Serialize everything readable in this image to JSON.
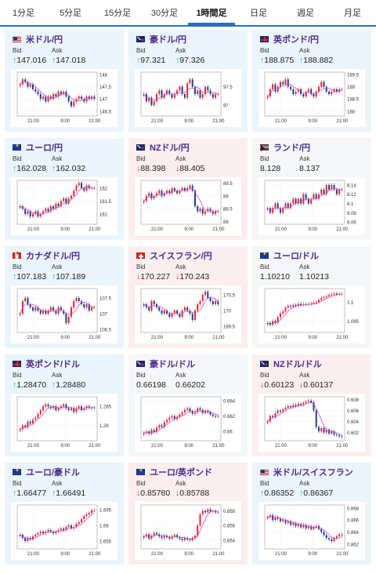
{
  "tabs": [
    {
      "label": "1分足",
      "active": false
    },
    {
      "label": "5分足",
      "active": false
    },
    {
      "label": "15分足",
      "active": false
    },
    {
      "label": "30分足",
      "active": false
    },
    {
      "label": "1時間足",
      "active": true
    },
    {
      "label": "日足",
      "active": false
    },
    {
      "label": "週足",
      "active": false
    },
    {
      "label": "月足",
      "active": false
    }
  ],
  "labels": {
    "bid": "Bid",
    "ask": "Ask"
  },
  "colors": {
    "up_bg": "#eaf4fb",
    "down_bg": "#fbeeee",
    "flat_bg": "#f4f6f8",
    "arrow_up": "#2aa9b3",
    "arrow_down": "#d2322d",
    "candle_up": "#e3232c",
    "candle_down": "#1c3a8c",
    "ma": "#d04ad0"
  },
  "pairs": [
    {
      "name": "米ドル/円",
      "flag": "us",
      "direction": "up",
      "bid": "147.016",
      "ask": "147.018",
      "chart": {
        "type": "candlestick",
        "x_ticks": [
          "21:00",
          "9:00",
          "21:00"
        ],
        "y_ticks": [
          "146.5",
          "147",
          "147.5",
          "148"
        ],
        "ylim": [
          146.3,
          148.1
        ],
        "closes": [
          147.6,
          147.8,
          147.7,
          147.5,
          147.6,
          147.4,
          147.3,
          147.2,
          147.0,
          147.1,
          146.9,
          147.1,
          147.0,
          147.2,
          147.1,
          147.3,
          147.2,
          147.3,
          147.1,
          146.9,
          146.7,
          146.9,
          147.0,
          147.1,
          147.0,
          146.9,
          147.1,
          147.0,
          147.1,
          147.0
        ]
      }
    },
    {
      "name": "豪ドル/円",
      "flag": "au",
      "direction": "up",
      "bid": "97.321",
      "ask": "97.326",
      "chart": {
        "type": "candlestick",
        "x_ticks": [
          "21:00",
          "9:00",
          "21:00"
        ],
        "y_ticks": [
          "97",
          "97.5"
        ],
        "ylim": [
          96.7,
          97.9
        ],
        "closes": [
          97.3,
          97.1,
          97.2,
          97.0,
          97.1,
          97.3,
          97.4,
          97.2,
          97.3,
          97.4,
          97.3,
          97.2,
          97.3,
          97.4,
          97.5,
          97.3,
          97.2,
          97.6,
          97.7,
          97.5,
          97.3,
          97.4,
          97.2,
          97.3,
          97.5,
          97.4,
          97.3,
          97.2,
          97.3,
          97.3
        ]
      }
    },
    {
      "name": "英ポンド/円",
      "flag": "gb",
      "direction": "up",
      "bid": "188.875",
      "ask": "188.882",
      "chart": {
        "type": "candlestick",
        "x_ticks": [
          "21:00",
          "9:00",
          "21:00"
        ],
        "y_ticks": [
          "188",
          "188.5",
          "189",
          "189.5"
        ],
        "ylim": [
          187.8,
          189.6
        ],
        "closes": [
          188.6,
          188.9,
          189.1,
          188.8,
          189.0,
          189.2,
          189.1,
          189.3,
          189.0,
          188.9,
          188.7,
          188.8,
          188.9,
          188.7,
          188.6,
          188.8,
          188.9,
          188.7,
          188.6,
          188.8,
          189.0,
          189.2,
          189.0,
          188.8,
          188.7,
          188.8,
          188.9,
          188.8,
          188.9,
          188.9
        ]
      }
    },
    {
      "name": "ユーロ/円",
      "flag": "eu",
      "direction": "up",
      "bid": "162.028",
      "ask": "162.032",
      "chart": {
        "type": "candlestick",
        "x_ticks": [
          "21:00",
          "9:00",
          "21:00"
        ],
        "y_ticks": [
          "161",
          "161.5",
          "162"
        ],
        "ylim": [
          160.6,
          162.3
        ],
        "closes": [
          161.3,
          161.2,
          161.0,
          161.1,
          160.9,
          161.0,
          161.1,
          160.9,
          161.0,
          161.1,
          161.2,
          161.1,
          161.3,
          161.2,
          161.4,
          161.3,
          161.5,
          161.6,
          161.4,
          161.6,
          161.7,
          161.9,
          162.1,
          162.2,
          162.0,
          161.9,
          162.1,
          162.0,
          162.0,
          162.0
        ]
      }
    },
    {
      "name": "NZドル/円",
      "flag": "nz",
      "direction": "down",
      "bid": "88.398",
      "ask": "88.405",
      "chart": {
        "type": "candlestick",
        "x_ticks": [
          "21:00",
          "9:00",
          "21:00"
        ],
        "y_ticks": [
          "88",
          "88.5",
          "89",
          "89.5"
        ],
        "ylim": [
          87.9,
          89.6
        ],
        "closes": [
          88.8,
          89.0,
          89.1,
          88.9,
          89.0,
          89.1,
          89.2,
          89.0,
          89.1,
          89.2,
          89.1,
          89.3,
          89.2,
          89.1,
          89.2,
          89.3,
          89.2,
          89.3,
          89.4,
          89.2,
          88.6,
          88.4,
          88.5,
          88.3,
          88.4,
          88.5,
          88.4,
          88.3,
          88.4,
          88.4
        ]
      }
    },
    {
      "name": "ランド/円",
      "flag": "za",
      "direction": "flat",
      "bid": "8.128",
      "ask": "8.137",
      "chart": {
        "type": "candlestick",
        "x_ticks": [
          "21:00",
          "9:00",
          "21:00"
        ],
        "y_ticks": [
          "8.06",
          "8.08",
          "8.1",
          "8.12",
          "8.14"
        ],
        "ylim": [
          8.055,
          8.15
        ],
        "closes": [
          8.09,
          8.08,
          8.09,
          8.1,
          8.09,
          8.08,
          8.09,
          8.1,
          8.09,
          8.1,
          8.11,
          8.1,
          8.11,
          8.1,
          8.12,
          8.11,
          8.1,
          8.11,
          8.12,
          8.11,
          8.12,
          8.13,
          8.12,
          8.14,
          8.13,
          8.14,
          8.13,
          8.12,
          8.13,
          8.13
        ]
      }
    },
    {
      "name": "カナダドル/円",
      "flag": "ca",
      "direction": "up",
      "bid": "107.183",
      "ask": "107.189",
      "chart": {
        "type": "candlestick",
        "x_ticks": [
          "21:00",
          "9:00",
          "21:00"
        ],
        "y_ticks": [
          "106.5",
          "107",
          "107.5"
        ],
        "ylim": [
          106.4,
          107.8
        ],
        "closes": [
          107.0,
          107.4,
          107.5,
          107.3,
          107.2,
          107.1,
          107.2,
          107.1,
          107.0,
          107.1,
          107.0,
          107.1,
          107.2,
          107.1,
          107.0,
          107.2,
          107.1,
          107.0,
          106.7,
          106.9,
          107.2,
          107.4,
          107.5,
          107.4,
          107.3,
          107.2,
          107.3,
          107.1,
          107.2,
          107.2
        ]
      }
    },
    {
      "name": "スイスフラン/円",
      "flag": "ch",
      "direction": "down",
      "bid": "170.227",
      "ask": "170.243",
      "chart": {
        "type": "candlestick",
        "x_ticks": [
          "21:00",
          "9:00",
          "21:00"
        ],
        "y_ticks": [
          "169.5",
          "170",
          "170.5"
        ],
        "ylim": [
          169.3,
          170.7
        ],
        "closes": [
          170.2,
          170.1,
          170.0,
          170.3,
          170.2,
          170.1,
          170.0,
          169.9,
          170.0,
          169.9,
          169.8,
          169.9,
          170.0,
          169.9,
          169.8,
          170.0,
          170.1,
          170.0,
          169.9,
          169.7,
          170.0,
          170.2,
          170.3,
          170.5,
          170.6,
          170.4,
          170.3,
          170.2,
          170.3,
          170.2
        ]
      }
    },
    {
      "name": "ユーロ/ドル",
      "flag": "eu",
      "direction": "flat",
      "bid": "1.10210",
      "ask": "1.10213",
      "chart": {
        "type": "candlestick",
        "x_ticks": [
          "21:00",
          "9:00",
          "21:00"
        ],
        "y_ticks": [
          "1.095",
          "1.1"
        ],
        "ylim": [
          1.092,
          1.1035
        ],
        "closes": [
          1.0945,
          1.094,
          1.095,
          1.0945,
          1.096,
          1.097,
          1.0975,
          1.0985,
          1.099,
          1.0988,
          1.0992,
          1.099,
          1.0995,
          1.0992,
          1.0994,
          1.0993,
          1.0995,
          1.0996,
          1.0998,
          1.1,
          1.1005,
          1.101,
          1.1012,
          1.1015,
          1.1018,
          1.102,
          1.1022,
          1.102,
          1.1021,
          1.1021
        ]
      }
    },
    {
      "name": "英ポンド/ドル",
      "flag": "gb",
      "direction": "up",
      "bid": "1.28470",
      "ask": "1.28480",
      "chart": {
        "type": "candlestick",
        "x_ticks": [
          "21:00",
          "9:00",
          "21:00"
        ],
        "y_ticks": [
          "1.28",
          "1.285"
        ],
        "ylim": [
          1.276,
          1.2875
        ],
        "closes": [
          1.279,
          1.28,
          1.2795,
          1.281,
          1.2805,
          1.2815,
          1.282,
          1.283,
          1.284,
          1.285,
          1.2855,
          1.285,
          1.2845,
          1.285,
          1.284,
          1.2845,
          1.285,
          1.2855,
          1.2845,
          1.284,
          1.2845,
          1.2835,
          1.2845,
          1.285,
          1.284,
          1.2845,
          1.285,
          1.2847,
          1.2846,
          1.2847
        ]
      }
    },
    {
      "name": "豪ドル/ドル",
      "flag": "au",
      "direction": "flat",
      "bid": "0.66198",
      "ask": "0.66202",
      "chart": {
        "type": "candlestick",
        "x_ticks": [
          "21:00",
          "9:00",
          "21:00"
        ],
        "y_ticks": [
          "0.66",
          "0.662",
          "0.664"
        ],
        "ylim": [
          0.6588,
          0.6645
        ],
        "closes": [
          0.6598,
          0.66,
          0.6597,
          0.6602,
          0.6599,
          0.6605,
          0.6608,
          0.6606,
          0.6612,
          0.6615,
          0.6618,
          0.662,
          0.6616,
          0.6619,
          0.6622,
          0.6625,
          0.6628,
          0.663,
          0.6626,
          0.6623,
          0.6625,
          0.663,
          0.6628,
          0.6624,
          0.6627,
          0.6625,
          0.6622,
          0.662,
          0.6619,
          0.662
        ]
      }
    },
    {
      "name": "NZドル/ドル",
      "flag": "nz",
      "direction": "down",
      "bid": "0.60123",
      "ask": "0.60137",
      "chart": {
        "type": "candlestick",
        "x_ticks": [
          "21:00",
          "9:00",
          "21:00"
        ],
        "y_ticks": [
          "0.602",
          "0.604",
          "0.606",
          "0.608"
        ],
        "ylim": [
          0.6005,
          0.6085
        ],
        "closes": [
          0.604,
          0.605,
          0.6048,
          0.6055,
          0.606,
          0.6058,
          0.6062,
          0.6065,
          0.6068,
          0.6066,
          0.607,
          0.6068,
          0.6072,
          0.607,
          0.6074,
          0.6076,
          0.6078,
          0.6075,
          0.606,
          0.603,
          0.6022,
          0.6028,
          0.602,
          0.6025,
          0.6018,
          0.6022,
          0.6016,
          0.6015,
          0.6013,
          0.6012
        ]
      }
    },
    {
      "name": "ユーロ/豪ドル",
      "flag": "eu",
      "direction": "up",
      "bid": "1.66477",
      "ask": "1.66491",
      "chart": {
        "type": "candlestick",
        "x_ticks": [
          "21:00",
          "9:00",
          "21:00"
        ],
        "y_ticks": [
          "1.655",
          "1.66",
          "1.665"
        ],
        "ylim": [
          1.6525,
          1.6665
        ],
        "closes": [
          1.657,
          1.656,
          1.655,
          1.656,
          1.6555,
          1.6565,
          1.657,
          1.6575,
          1.658,
          1.6575,
          1.658,
          1.6585,
          1.658,
          1.6575,
          1.658,
          1.6585,
          1.659,
          1.6585,
          1.6595,
          1.66,
          1.659,
          1.6595,
          1.6605,
          1.661,
          1.662,
          1.663,
          1.6635,
          1.664,
          1.6648,
          1.6648
        ]
      }
    },
    {
      "name": "ユーロ/英ポンド",
      "flag": "eu",
      "direction": "down",
      "bid": "0.85780",
      "ask": "0.85788",
      "chart": {
        "type": "candlestick",
        "x_ticks": [
          "21:00",
          "9:00",
          "21:00"
        ],
        "y_ticks": [
          "0.854",
          "0.856",
          "0.858"
        ],
        "ylim": [
          0.8528,
          0.8588
        ],
        "closes": [
          0.8545,
          0.8548,
          0.8542,
          0.8546,
          0.855,
          0.8548,
          0.8545,
          0.8543,
          0.8546,
          0.8544,
          0.8542,
          0.8545,
          0.8547,
          0.8544,
          0.8542,
          0.854,
          0.8543,
          0.8541,
          0.854,
          0.8543,
          0.8546,
          0.856,
          0.8575,
          0.858,
          0.8578,
          0.8582,
          0.8579,
          0.858,
          0.8578,
          0.8578
        ]
      }
    },
    {
      "name": "米ドル/スイスフラン",
      "flag": "us",
      "direction": "up",
      "bid": "0.86352",
      "ask": "0.86367",
      "chart": {
        "type": "candlestick",
        "x_ticks": [
          "21:00",
          "9:00",
          "21:00"
        ],
        "y_ticks": [
          "0.862",
          "0.864",
          "0.866",
          "0.868"
        ],
        "ylim": [
          0.8612,
          0.8685
        ],
        "closes": [
          0.8665,
          0.8668,
          0.866,
          0.8665,
          0.8662,
          0.8658,
          0.866,
          0.8655,
          0.8658,
          0.8652,
          0.8655,
          0.865,
          0.8653,
          0.8648,
          0.8652,
          0.8646,
          0.865,
          0.8645,
          0.8648,
          0.865,
          0.8645,
          0.864,
          0.8635,
          0.863,
          0.8628,
          0.8625,
          0.863,
          0.8633,
          0.8636,
          0.8635
        ]
      }
    }
  ]
}
